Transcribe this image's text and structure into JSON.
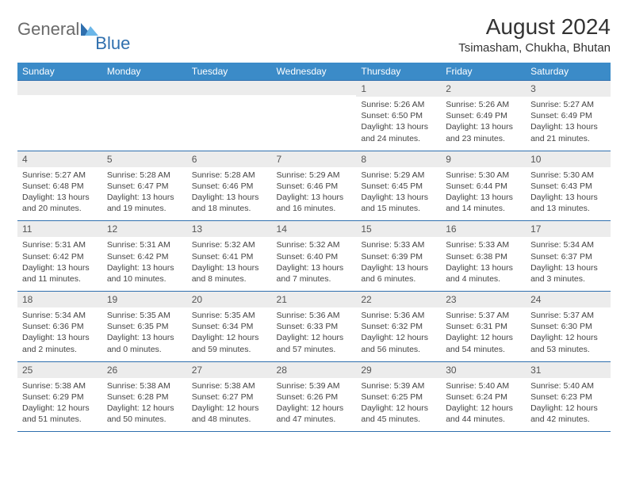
{
  "logo": {
    "text1": "General",
    "text2": "Blue"
  },
  "title": "August 2024",
  "location": "Tsimasham, Chukha, Bhutan",
  "colors": {
    "header_bg": "#3b8bc8",
    "header_text": "#ffffff",
    "daynum_bg": "#ececec",
    "border": "#2f6fae",
    "logo_gray": "#6a6a6a",
    "logo_blue": "#2f6fae"
  },
  "weekdays": [
    "Sunday",
    "Monday",
    "Tuesday",
    "Wednesday",
    "Thursday",
    "Friday",
    "Saturday"
  ],
  "weeks": [
    [
      {
        "n": "",
        "sr": "",
        "ss": "",
        "dl": ""
      },
      {
        "n": "",
        "sr": "",
        "ss": "",
        "dl": ""
      },
      {
        "n": "",
        "sr": "",
        "ss": "",
        "dl": ""
      },
      {
        "n": "",
        "sr": "",
        "ss": "",
        "dl": ""
      },
      {
        "n": "1",
        "sr": "Sunrise: 5:26 AM",
        "ss": "Sunset: 6:50 PM",
        "dl": "Daylight: 13 hours and 24 minutes."
      },
      {
        "n": "2",
        "sr": "Sunrise: 5:26 AM",
        "ss": "Sunset: 6:49 PM",
        "dl": "Daylight: 13 hours and 23 minutes."
      },
      {
        "n": "3",
        "sr": "Sunrise: 5:27 AM",
        "ss": "Sunset: 6:49 PM",
        "dl": "Daylight: 13 hours and 21 minutes."
      }
    ],
    [
      {
        "n": "4",
        "sr": "Sunrise: 5:27 AM",
        "ss": "Sunset: 6:48 PM",
        "dl": "Daylight: 13 hours and 20 minutes."
      },
      {
        "n": "5",
        "sr": "Sunrise: 5:28 AM",
        "ss": "Sunset: 6:47 PM",
        "dl": "Daylight: 13 hours and 19 minutes."
      },
      {
        "n": "6",
        "sr": "Sunrise: 5:28 AM",
        "ss": "Sunset: 6:46 PM",
        "dl": "Daylight: 13 hours and 18 minutes."
      },
      {
        "n": "7",
        "sr": "Sunrise: 5:29 AM",
        "ss": "Sunset: 6:46 PM",
        "dl": "Daylight: 13 hours and 16 minutes."
      },
      {
        "n": "8",
        "sr": "Sunrise: 5:29 AM",
        "ss": "Sunset: 6:45 PM",
        "dl": "Daylight: 13 hours and 15 minutes."
      },
      {
        "n": "9",
        "sr": "Sunrise: 5:30 AM",
        "ss": "Sunset: 6:44 PM",
        "dl": "Daylight: 13 hours and 14 minutes."
      },
      {
        "n": "10",
        "sr": "Sunrise: 5:30 AM",
        "ss": "Sunset: 6:43 PM",
        "dl": "Daylight: 13 hours and 13 minutes."
      }
    ],
    [
      {
        "n": "11",
        "sr": "Sunrise: 5:31 AM",
        "ss": "Sunset: 6:42 PM",
        "dl": "Daylight: 13 hours and 11 minutes."
      },
      {
        "n": "12",
        "sr": "Sunrise: 5:31 AM",
        "ss": "Sunset: 6:42 PM",
        "dl": "Daylight: 13 hours and 10 minutes."
      },
      {
        "n": "13",
        "sr": "Sunrise: 5:32 AM",
        "ss": "Sunset: 6:41 PM",
        "dl": "Daylight: 13 hours and 8 minutes."
      },
      {
        "n": "14",
        "sr": "Sunrise: 5:32 AM",
        "ss": "Sunset: 6:40 PM",
        "dl": "Daylight: 13 hours and 7 minutes."
      },
      {
        "n": "15",
        "sr": "Sunrise: 5:33 AM",
        "ss": "Sunset: 6:39 PM",
        "dl": "Daylight: 13 hours and 6 minutes."
      },
      {
        "n": "16",
        "sr": "Sunrise: 5:33 AM",
        "ss": "Sunset: 6:38 PM",
        "dl": "Daylight: 13 hours and 4 minutes."
      },
      {
        "n": "17",
        "sr": "Sunrise: 5:34 AM",
        "ss": "Sunset: 6:37 PM",
        "dl": "Daylight: 13 hours and 3 minutes."
      }
    ],
    [
      {
        "n": "18",
        "sr": "Sunrise: 5:34 AM",
        "ss": "Sunset: 6:36 PM",
        "dl": "Daylight: 13 hours and 2 minutes."
      },
      {
        "n": "19",
        "sr": "Sunrise: 5:35 AM",
        "ss": "Sunset: 6:35 PM",
        "dl": "Daylight: 13 hours and 0 minutes."
      },
      {
        "n": "20",
        "sr": "Sunrise: 5:35 AM",
        "ss": "Sunset: 6:34 PM",
        "dl": "Daylight: 12 hours and 59 minutes."
      },
      {
        "n": "21",
        "sr": "Sunrise: 5:36 AM",
        "ss": "Sunset: 6:33 PM",
        "dl": "Daylight: 12 hours and 57 minutes."
      },
      {
        "n": "22",
        "sr": "Sunrise: 5:36 AM",
        "ss": "Sunset: 6:32 PM",
        "dl": "Daylight: 12 hours and 56 minutes."
      },
      {
        "n": "23",
        "sr": "Sunrise: 5:37 AM",
        "ss": "Sunset: 6:31 PM",
        "dl": "Daylight: 12 hours and 54 minutes."
      },
      {
        "n": "24",
        "sr": "Sunrise: 5:37 AM",
        "ss": "Sunset: 6:30 PM",
        "dl": "Daylight: 12 hours and 53 minutes."
      }
    ],
    [
      {
        "n": "25",
        "sr": "Sunrise: 5:38 AM",
        "ss": "Sunset: 6:29 PM",
        "dl": "Daylight: 12 hours and 51 minutes."
      },
      {
        "n": "26",
        "sr": "Sunrise: 5:38 AM",
        "ss": "Sunset: 6:28 PM",
        "dl": "Daylight: 12 hours and 50 minutes."
      },
      {
        "n": "27",
        "sr": "Sunrise: 5:38 AM",
        "ss": "Sunset: 6:27 PM",
        "dl": "Daylight: 12 hours and 48 minutes."
      },
      {
        "n": "28",
        "sr": "Sunrise: 5:39 AM",
        "ss": "Sunset: 6:26 PM",
        "dl": "Daylight: 12 hours and 47 minutes."
      },
      {
        "n": "29",
        "sr": "Sunrise: 5:39 AM",
        "ss": "Sunset: 6:25 PM",
        "dl": "Daylight: 12 hours and 45 minutes."
      },
      {
        "n": "30",
        "sr": "Sunrise: 5:40 AM",
        "ss": "Sunset: 6:24 PM",
        "dl": "Daylight: 12 hours and 44 minutes."
      },
      {
        "n": "31",
        "sr": "Sunrise: 5:40 AM",
        "ss": "Sunset: 6:23 PM",
        "dl": "Daylight: 12 hours and 42 minutes."
      }
    ]
  ]
}
